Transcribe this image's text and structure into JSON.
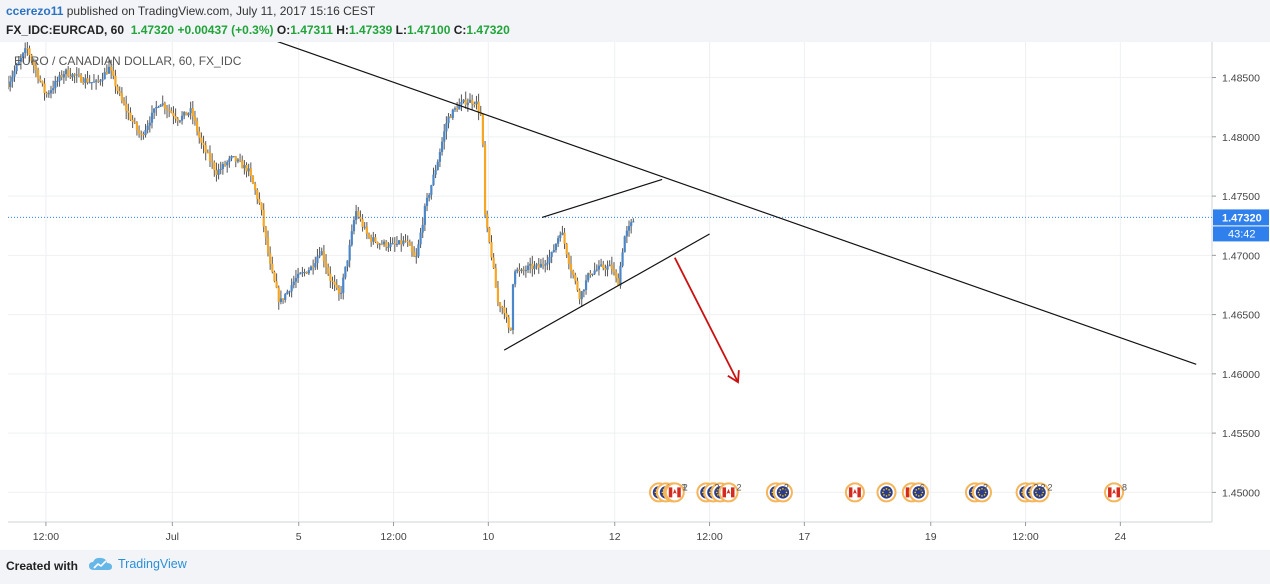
{
  "header": {
    "author": "ccerezo11",
    "published": "published on TradingView.com, July 11, 2017 15:16 CEST",
    "symbol": "FX_IDC:EURCAD, 60",
    "last": "1.47320",
    "change": "+0.00437 (+0.3%)",
    "o_label": "O:",
    "o_value": "1.47311",
    "h_label": "H:",
    "h_value": "1.47339",
    "l_label": "L:",
    "l_value": "1.47100",
    "c_label": "C:",
    "c_value": "1.47320"
  },
  "footer": {
    "created_with": "Created with",
    "brand": "TradingView"
  },
  "chart_data": {
    "type": "candlestick",
    "title": "EURO / CANADIAN DOLLAR, 60, FX_IDC",
    "y_axis": {
      "position": "right",
      "range": [
        1.4475,
        1.488
      ],
      "ticks": [
        1.45,
        1.455,
        1.46,
        1.465,
        1.47,
        1.475,
        1.48,
        1.485
      ],
      "tick_labels": [
        "1.45000",
        "1.45500",
        "1.46000",
        "1.46500",
        "1.47000",
        "1.47500",
        "1.48000",
        "1.48500"
      ]
    },
    "x_axis": {
      "tick_labels": [
        "12:00",
        "Jul",
        "5",
        "12:00",
        "10",
        "12",
        "12:00",
        "17",
        "19",
        "12:00",
        "24"
      ],
      "tick_pos": [
        0.5,
        2.5,
        4.5,
        6,
        7.5,
        9.5,
        11,
        12.5,
        14.5,
        16,
        17.5
      ]
    },
    "current_price": {
      "value": 1.4732,
      "label": "1.47320",
      "countdown": "43:42"
    },
    "colors": {
      "up": "#4a86c8",
      "down": "#f5a623",
      "last_price": "#2f80ed",
      "arrow": "#cc1111",
      "line": "#111111"
    },
    "price_path": [
      [
        -0.1,
        1.4845
      ],
      [
        0.2,
        1.4875
      ],
      [
        0.5,
        1.4835
      ],
      [
        0.8,
        1.4855
      ],
      [
        1.0,
        1.485
      ],
      [
        1.3,
        1.4845
      ],
      [
        1.5,
        1.4858
      ],
      [
        1.7,
        1.483
      ],
      [
        2.0,
        1.48
      ],
      [
        2.3,
        1.483
      ],
      [
        2.6,
        1.4815
      ],
      [
        2.8,
        1.4822
      ],
      [
        2.95,
        1.4795
      ],
      [
        3.2,
        1.477
      ],
      [
        3.45,
        1.4782
      ],
      [
        3.7,
        1.4772
      ],
      [
        3.9,
        1.474
      ],
      [
        4.05,
        1.469
      ],
      [
        4.2,
        1.466
      ],
      [
        4.45,
        1.468
      ],
      [
        4.7,
        1.469
      ],
      [
        4.85,
        1.4705
      ],
      [
        5.0,
        1.468
      ],
      [
        5.15,
        1.4665
      ],
      [
        5.3,
        1.4705
      ],
      [
        5.4,
        1.4738
      ],
      [
        5.6,
        1.4715
      ],
      [
        5.8,
        1.471
      ],
      [
        6.0,
        1.4708
      ],
      [
        6.2,
        1.4712
      ],
      [
        6.35,
        1.4695
      ],
      [
        6.5,
        1.474
      ],
      [
        6.7,
        1.478
      ],
      [
        6.85,
        1.4815
      ],
      [
        7.0,
        1.4825
      ],
      [
        7.15,
        1.483
      ],
      [
        7.3,
        1.483
      ],
      [
        7.4,
        1.4815
      ],
      [
        7.45,
        1.473
      ],
      [
        7.55,
        1.47
      ],
      [
        7.65,
        1.466
      ],
      [
        7.75,
        1.4655
      ],
      [
        7.85,
        1.463
      ],
      [
        7.9,
        1.469
      ],
      [
        8.0,
        1.4685
      ],
      [
        8.15,
        1.469
      ],
      [
        8.3,
        1.469
      ],
      [
        8.5,
        1.47
      ],
      [
        8.65,
        1.4722
      ],
      [
        8.8,
        1.469
      ],
      [
        8.95,
        1.4665
      ],
      [
        9.1,
        1.4685
      ],
      [
        9.3,
        1.469
      ],
      [
        9.45,
        1.469
      ],
      [
        9.55,
        1.4675
      ],
      [
        9.65,
        1.4715
      ],
      [
        9.75,
        1.4725
      ],
      [
        9.82,
        1.4732
      ]
    ],
    "trendlines": [
      {
        "name": "resistance",
        "from": [
          2.05,
          1.492
        ],
        "to": [
          18.7,
          1.4608
        ]
      },
      {
        "name": "channel-lower",
        "from": [
          7.75,
          1.462
        ],
        "to": [
          11.0,
          1.4718
        ]
      },
      {
        "name": "channel-upper",
        "from": [
          8.35,
          1.4732
        ],
        "to": [
          10.25,
          1.4764
        ]
      }
    ],
    "arrow": {
      "from": [
        10.45,
        1.4698
      ],
      "to": [
        11.45,
        1.4593
      ]
    },
    "events": [
      {
        "x": 10.2,
        "flags": [
          "eu",
          "eu",
          "eu"
        ],
        "labels": [
          "2",
          "2",
          "3"
        ]
      },
      {
        "x": 10.45,
        "flags": [
          "ca"
        ],
        "labels": [
          "2"
        ]
      },
      {
        "x": 10.95,
        "flags": [
          "eu",
          "eu",
          "eu"
        ],
        "labels": [
          "2",
          "2",
          "2"
        ]
      },
      {
        "x": 11.3,
        "flags": [
          "ca"
        ],
        "labels": [
          "2"
        ]
      },
      {
        "x": 12.05,
        "flags": [
          "eu",
          "eu"
        ],
        "labels": [
          "2"
        ]
      },
      {
        "x": 13.3,
        "flags": [
          "ca"
        ],
        "labels": []
      },
      {
        "x": 13.8,
        "flags": [
          "eu"
        ],
        "labels": []
      },
      {
        "x": 14.2,
        "flags": [
          "ca",
          "eu"
        ],
        "labels": [
          "6"
        ]
      },
      {
        "x": 15.2,
        "flags": [
          "eu",
          "eu"
        ],
        "labels": [
          "2"
        ]
      },
      {
        "x": 16.0,
        "flags": [
          "eu",
          "eu",
          "eu"
        ],
        "labels": [
          "2",
          "2",
          "2"
        ]
      },
      {
        "x": 17.4,
        "flags": [
          "ca"
        ],
        "labels": [
          "8"
        ]
      }
    ]
  }
}
